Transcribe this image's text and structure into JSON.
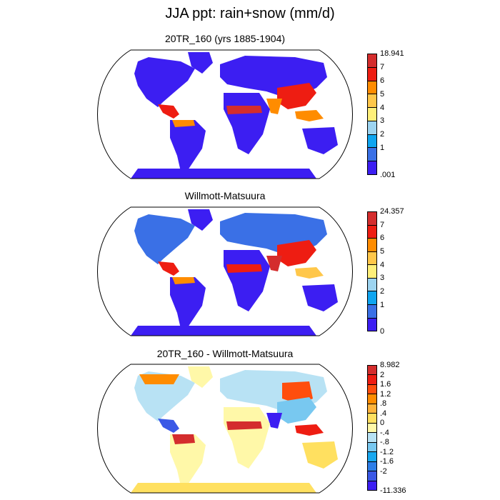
{
  "title": "JJA ppt: rain+snow (mm/d)",
  "panels": [
    {
      "title": "20TR_160 (yrs 1885-1904)",
      "colorbar": {
        "labels": [
          "18.941",
          "7",
          "6",
          "5",
          "4",
          "3",
          "2",
          "1",
          ".001"
        ],
        "colors": [
          "#d42d2d",
          "#ee1d12",
          "#ff8c00",
          "#ffc74a",
          "#fff07a",
          "#9dd4f0",
          "#0fa5f0",
          "#3a70e6",
          "#3c1ef2"
        ]
      }
    },
    {
      "title": "Willmott-Matsuura",
      "colorbar": {
        "labels": [
          "24.357",
          "7",
          "6",
          "5",
          "4",
          "3",
          "2",
          "1",
          "0"
        ],
        "colors": [
          "#d42d2d",
          "#ee1d12",
          "#ff8c00",
          "#ffc74a",
          "#fff07a",
          "#9dd4f0",
          "#0fa5f0",
          "#3a70e6",
          "#3c1ef2"
        ]
      }
    },
    {
      "title": "20TR_160 - Willmott-Matsuura",
      "colorbar": {
        "labels": [
          "8.982",
          "2",
          "1.6",
          "1.2",
          ".8",
          ".4",
          "0",
          "-.4",
          "-.8",
          "-1.2",
          "-1.6",
          "-2",
          "-11.336"
        ],
        "colors": [
          "#d42d2d",
          "#ee1d12",
          "#ff4e0d",
          "#ff8c00",
          "#ffb43c",
          "#ffe060",
          "#fff8a8",
          "#b8e2f4",
          "#78c8f0",
          "#18a8f0",
          "#2d7ee8",
          "#3a58e6",
          "#3c1ef2"
        ]
      }
    }
  ]
}
